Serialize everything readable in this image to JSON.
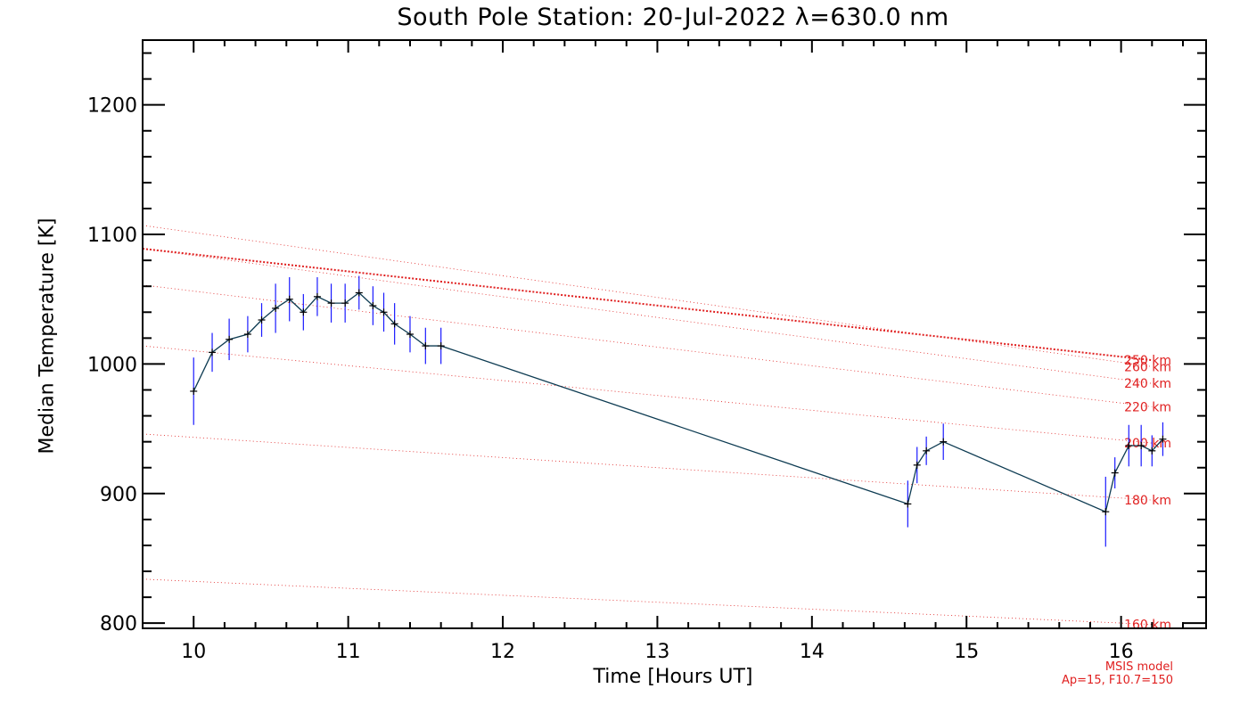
{
  "chart_data": {
    "type": "line",
    "title": "South Pole Station: 20-Jul-2022 λ=630.0 nm",
    "xlabel": "Time [Hours UT]",
    "ylabel": "Median Temperature [K]",
    "xlim": [
      9.67,
      16.55
    ],
    "ylim": [
      796,
      1250
    ],
    "x_ticks": [
      "10",
      "11",
      "12",
      "13",
      "14",
      "15",
      "16"
    ],
    "y_ticks": [
      "800",
      "900",
      "1000",
      "1100",
      "1200"
    ],
    "series": [
      {
        "name": "Median Temperature",
        "color": "#0d3b52",
        "errorbar_color": "#1a1aff",
        "x": [
          10.0,
          10.12,
          10.23,
          10.35,
          10.44,
          10.53,
          10.62,
          10.71,
          10.8,
          10.89,
          10.98,
          11.07,
          11.16,
          11.23,
          11.3,
          11.4,
          11.5,
          11.6,
          14.62,
          14.68,
          14.74,
          14.85,
          15.9,
          15.96,
          16.05,
          16.13,
          16.2,
          16.27
        ],
        "y": [
          979,
          1009,
          1019,
          1023,
          1034,
          1043,
          1050,
          1040,
          1052,
          1047,
          1047,
          1055,
          1045,
          1040,
          1031,
          1023,
          1014,
          1014,
          892,
          922,
          933,
          940,
          886,
          916,
          937,
          937,
          933,
          942
        ],
        "err": [
          26,
          15,
          16,
          14,
          13,
          19,
          17,
          14,
          15,
          15,
          15,
          13,
          15,
          15,
          16,
          14,
          14,
          14,
          18,
          14,
          11,
          14,
          27,
          12,
          16,
          16,
          12,
          13
        ]
      }
    ],
    "model_lines": [
      {
        "label": "160 km",
        "t_start": 834,
        "t_end": 799,
        "thick": false
      },
      {
        "label": "180 km",
        "t_start": 946,
        "t_end": 895,
        "thick": false
      },
      {
        "label": "200 km",
        "t_start": 1014,
        "t_end": 939,
        "thick": false
      },
      {
        "label": "220 km",
        "t_start": 1061,
        "t_end": 967,
        "thick": false
      },
      {
        "label": "240 km",
        "t_start": 1089,
        "t_end": 985,
        "thick": false
      },
      {
        "label": "250 km",
        "t_start": 1089,
        "t_end": 1003,
        "thick": true
      },
      {
        "label": "260 km",
        "t_start": 1107,
        "t_end": 998,
        "thick": false
      }
    ],
    "model_label_color": "#e02020"
  },
  "notes": {
    "line1": "MSIS model",
    "line2": "Ap=15, F10.7=150"
  }
}
